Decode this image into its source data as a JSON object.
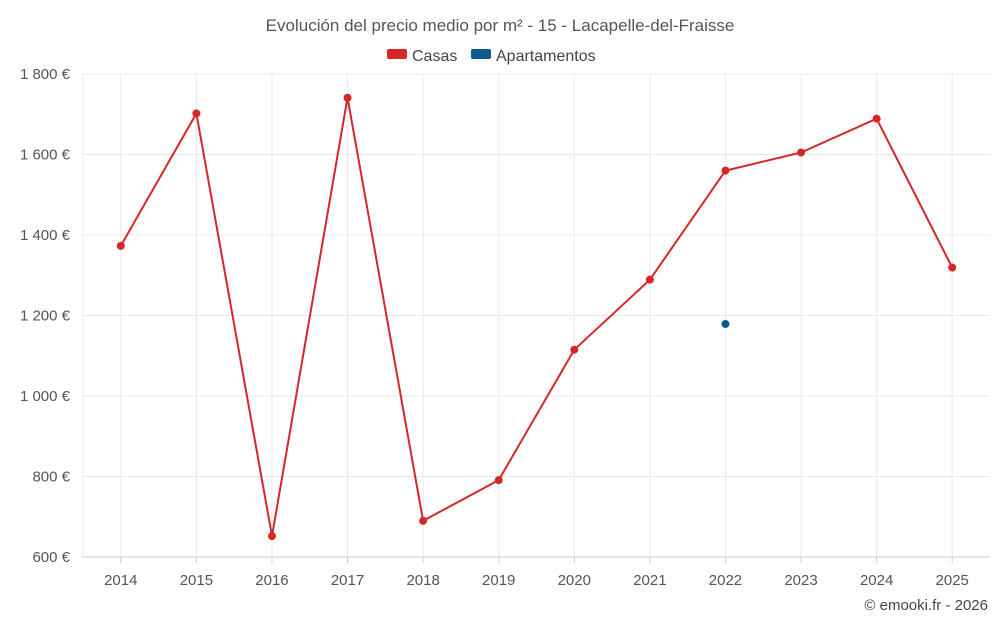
{
  "chart_data": {
    "type": "line",
    "title": "Evolución del precio medio por m² - 15 - Lacapelle-del-Fraisse",
    "categories": [
      "2014",
      "2015",
      "2016",
      "2017",
      "2018",
      "2019",
      "2020",
      "2021",
      "2022",
      "2023",
      "2024",
      "2025"
    ],
    "series": [
      {
        "name": "Casas",
        "color": "#d62728",
        "values": [
          1373,
          1702,
          652,
          1741,
          690,
          791,
          1115,
          1289,
          1560,
          1605,
          1689,
          1319
        ]
      },
      {
        "name": "Apartamentos",
        "color": "#0a5a8c",
        "values": [
          null,
          null,
          null,
          null,
          null,
          null,
          null,
          null,
          1179,
          null,
          null,
          null
        ]
      }
    ],
    "ylim": [
      600,
      1800
    ],
    "yticks": [
      600,
      800,
      1000,
      1200,
      1400,
      1600,
      1800
    ],
    "ytick_labels": [
      "600 €",
      "800 €",
      "1 000 €",
      "1 200 €",
      "1 400 €",
      "1 600 €",
      "1 800 €"
    ],
    "xlabel": "",
    "ylabel": "",
    "grid": true,
    "legend": "top-center"
  },
  "credit": "© emooki.fr - 2026"
}
